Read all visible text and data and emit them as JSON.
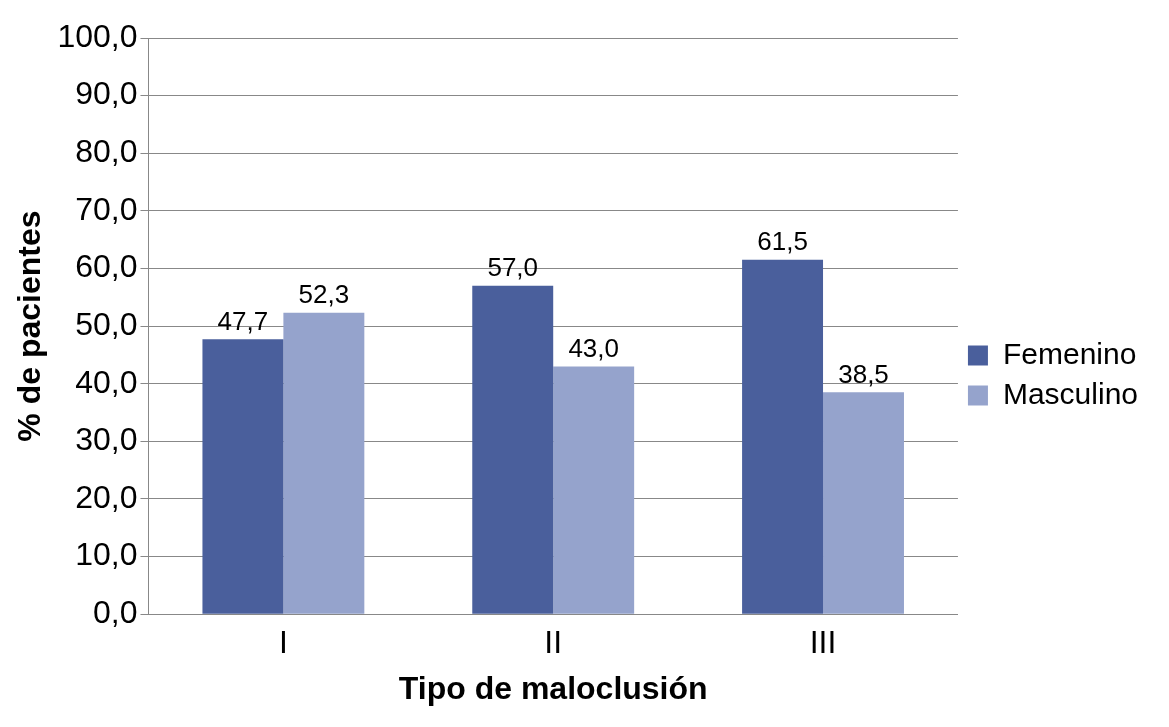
{
  "chart_data": {
    "type": "bar",
    "xlabel": "Tipo de maloclusión",
    "ylabel": "% de pacientes",
    "categories": [
      "I",
      "II",
      "III"
    ],
    "series": [
      {
        "name": "Femenino",
        "color": "#4a5f9c",
        "values": [
          47.7,
          57.0,
          61.5
        ],
        "value_labels": [
          "47,7",
          "57,0",
          "61,5"
        ]
      },
      {
        "name": "Masculino",
        "color": "#95a3cc",
        "values": [
          52.3,
          43.0,
          38.5
        ],
        "value_labels": [
          "52,3",
          "43,0",
          "38,5"
        ]
      }
    ],
    "ylim": [
      0,
      100
    ],
    "yticks": [
      {
        "value": 0,
        "label": "0,0"
      },
      {
        "value": 10,
        "label": "10,0"
      },
      {
        "value": 20,
        "label": "20,0"
      },
      {
        "value": 30,
        "label": "30,0"
      },
      {
        "value": 40,
        "label": "40,0"
      },
      {
        "value": 50,
        "label": "50,0"
      },
      {
        "value": 60,
        "label": "60,0"
      },
      {
        "value": 70,
        "label": "70,0"
      },
      {
        "value": 80,
        "label": "80,0"
      },
      {
        "value": 90,
        "label": "90,0"
      },
      {
        "value": 100,
        "label": "100,0"
      }
    ],
    "grid": "y",
    "legend": "right"
  }
}
